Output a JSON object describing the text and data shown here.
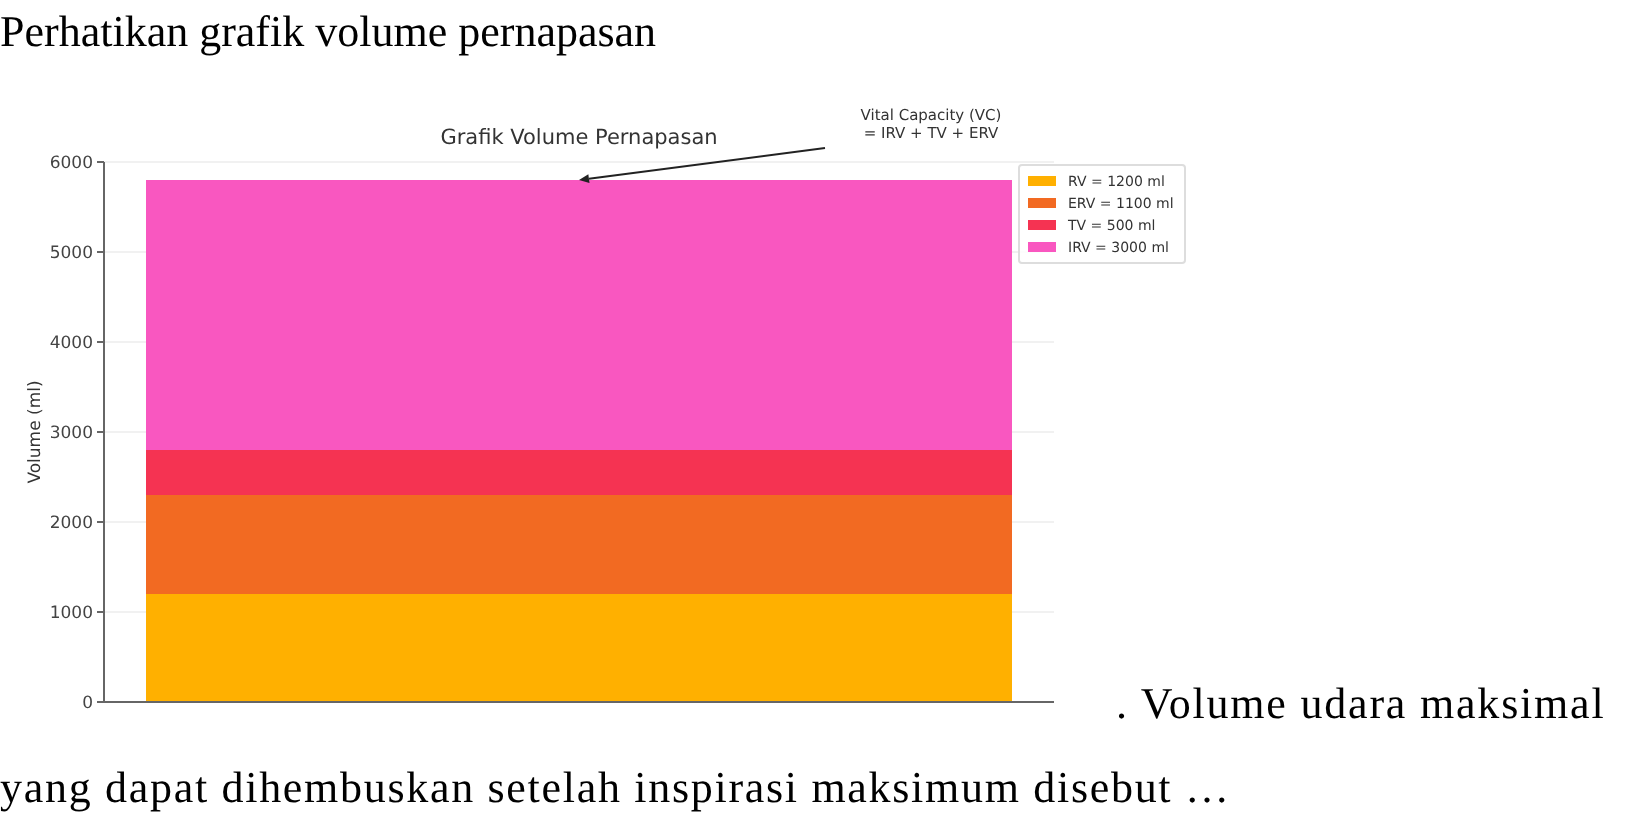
{
  "chart_data": {
    "type": "bar",
    "title": "Grafik Volume Pernapasan",
    "ylabel": "Volume (ml)",
    "categories": [
      null
    ],
    "stacked": true,
    "series": [
      {
        "name": "RV = 1200 ml",
        "color": "#ffb000",
        "values": [
          1200
        ]
      },
      {
        "name": "ERV = 1100 ml",
        "color": "#f26a22",
        "values": [
          1100
        ]
      },
      {
        "name": "TV = 500 ml",
        "color": "#f53352",
        "values": [
          500
        ]
      },
      {
        "name": "IRV = 3000 ml",
        "color": "#f957c0",
        "values": [
          3000
        ]
      }
    ],
    "ylim": [
      0,
      6000
    ],
    "yticks": [
      0,
      1000,
      2000,
      3000,
      4000,
      5000,
      6000
    ],
    "grid": "y",
    "legend": "top right",
    "annotations": [
      "Perhatikan grafik volume pernapasan",
      {
        "text": "Vital Capacity (VC)\n= IRV + TV + ERV",
        "y": 5800
      },
      ". Volume udara maksimal",
      "yang dapat dihembuskan setelah inspirasi maksimum disebut …"
    ]
  }
}
